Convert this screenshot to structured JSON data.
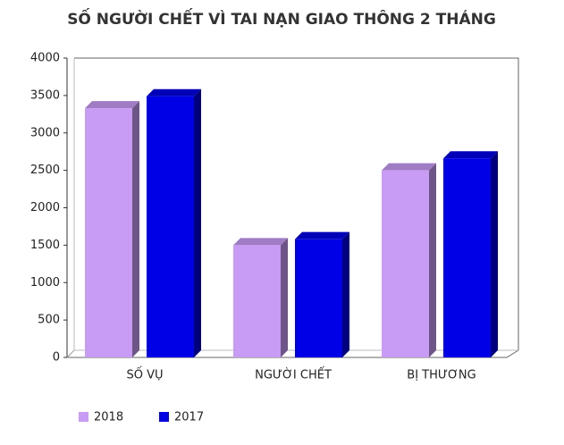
{
  "chart_data": {
    "type": "bar3d",
    "title": "SỐ NGƯỜI CHẾT VÌ TAI NẠN GIAO THÔNG 2 THÁNG",
    "categories": [
      "SỐ VỤ",
      "NGƯỜI CHẾT",
      "BỊ THƯƠNG"
    ],
    "series": [
      {
        "name": "2018",
        "color": "#c89bf5",
        "values": [
          3330,
          1500,
          2500
        ]
      },
      {
        "name": "2017",
        "color": "#0000e6",
        "values": [
          3490,
          1580,
          2660
        ]
      }
    ],
    "ylim": [
      0,
      4000
    ],
    "yticks": [
      0,
      500,
      1000,
      1500,
      2000,
      2500,
      3000,
      3500,
      4000
    ]
  }
}
